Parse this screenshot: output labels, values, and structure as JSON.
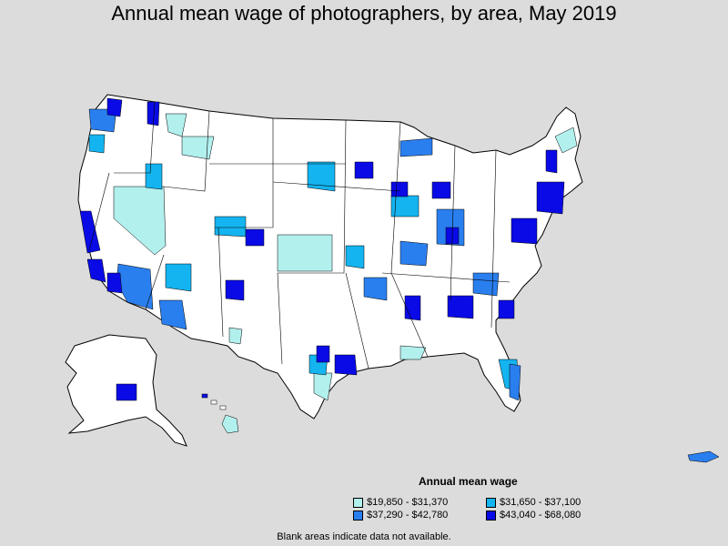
{
  "title": "Annual mean wage of photographers, by area, May 2019",
  "legend": {
    "title": "Annual mean wage",
    "items": [
      {
        "label": "$19,850 - $31,370",
        "color": "#b2f0ee"
      },
      {
        "label": "$31,650 - $37,100",
        "color": "#14b4f0"
      },
      {
        "label": "$37,290 - $42,780",
        "color": "#2a7fef"
      },
      {
        "label": "$43,040 - $68,080",
        "color": "#0a0ae6"
      }
    ]
  },
  "footnote": "Blank areas indicate data not available.",
  "colors": {
    "background": "#dcdcdc",
    "land": "#ffffff",
    "border": "#000000"
  }
}
